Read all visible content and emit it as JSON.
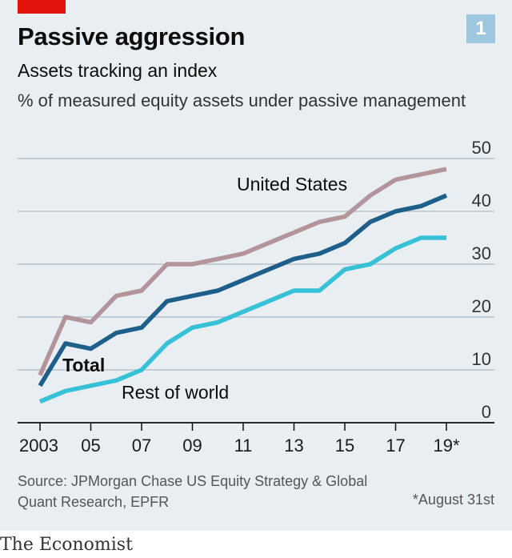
{
  "header": {
    "title": "Passive aggression",
    "subtitle": "Assets tracking an index",
    "units": "% of measured equity assets under passive management",
    "badge": "1"
  },
  "footer": {
    "source": "Source: JPMorgan Chase US Equity Strategy & Global Quant Research, EPFR",
    "footnote": "*August 31st",
    "brand": "The Economist"
  },
  "colors": {
    "background": "#e8eef2",
    "accent_red": "#e3120b",
    "badge": "#9dc6df",
    "grid": "#b0bcc4",
    "axis": "#0c0c0c",
    "united_states": "#b3949a",
    "total": "#1d5f8a",
    "rest_of_world": "#36c1d6"
  },
  "chart_data": {
    "type": "line",
    "title": "Passive aggression",
    "subtitle": "Assets tracking an index",
    "ylabel": "% of measured equity assets under passive management",
    "x": [
      2003,
      2004,
      2005,
      2006,
      2007,
      2008,
      2009,
      2010,
      2011,
      2012,
      2013,
      2014,
      2015,
      2016,
      2017,
      2018,
      2019
    ],
    "xlim": [
      2003,
      2019
    ],
    "x_tick_values": [
      2003,
      2005,
      2007,
      2009,
      2011,
      2013,
      2015,
      2017,
      2019
    ],
    "x_tick_labels": [
      "2003",
      "05",
      "07",
      "09",
      "11",
      "13",
      "15",
      "17",
      "19*"
    ],
    "ylim": [
      0,
      50
    ],
    "y_ticks": [
      0,
      10,
      20,
      30,
      40,
      50
    ],
    "y_tick_labels": [
      "0",
      "10",
      "20",
      "30",
      "40",
      "50"
    ],
    "grid": true,
    "series": [
      {
        "name": "United States",
        "color": "#b3949a",
        "values": [
          9,
          20,
          19,
          24,
          25,
          30,
          30,
          31,
          32,
          34,
          36,
          38,
          39,
          43,
          46,
          47,
          48
        ]
      },
      {
        "name": "Total",
        "color": "#1d5f8a",
        "values": [
          7,
          15,
          14,
          17,
          18,
          23,
          24,
          25,
          27,
          29,
          31,
          32,
          34,
          38,
          40,
          41,
          43
        ]
      },
      {
        "name": "Rest of world",
        "color": "#36c1d6",
        "values": [
          4,
          6,
          7,
          8,
          10,
          15,
          18,
          19,
          21,
          23,
          25,
          25,
          29,
          30,
          33,
          35,
          35
        ]
      }
    ]
  }
}
